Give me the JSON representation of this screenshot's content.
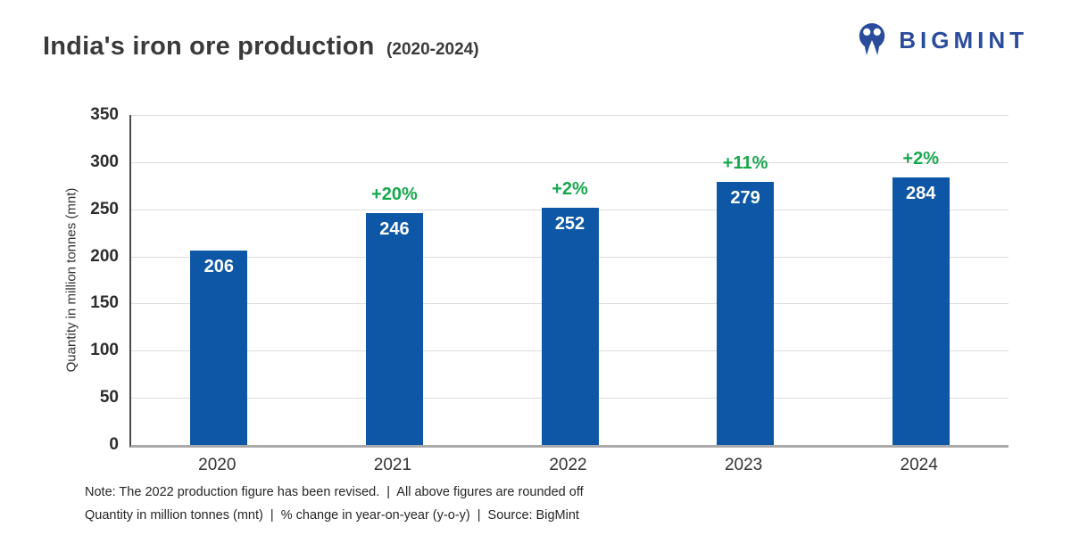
{
  "header": {
    "title": "India's iron ore production",
    "subtitle": "(2020-2024)",
    "logo_text": "BIGMINT"
  },
  "chart_data": {
    "type": "bar",
    "title": "India's iron ore production (2020-2024)",
    "categories": [
      "2020",
      "2021",
      "2022",
      "2023",
      "2024"
    ],
    "values": [
      206,
      246,
      252,
      279,
      284
    ],
    "pct_change": [
      "",
      "+20%",
      "+2%",
      "+11%",
      "+2%"
    ],
    "xlabel": "",
    "ylabel": "Quantity in million tonnes (mnt)",
    "ylim": [
      0,
      350
    ],
    "yticks": [
      0,
      50,
      100,
      150,
      200,
      250,
      300,
      350
    ],
    "grid": "horizontal",
    "legend": "none",
    "bar_color": "#0D57A6",
    "value_label_color": "#FFFFFF",
    "pct_color": "#17A84D"
  },
  "footer": {
    "note_line1": "Note: The 2022 production figure has been revised.  |  All above figures are rounded off",
    "note_line2": "Quantity in million tonnes (mnt)  |  % change in year-on-year (y-o-y)  |  Source: BigMint"
  },
  "colors": {
    "logo_blue": "#2B4C9C",
    "title_text": "#3A3A3A",
    "gridline": "#DCDCDC",
    "axis_baseline": "#A9A9A9"
  }
}
